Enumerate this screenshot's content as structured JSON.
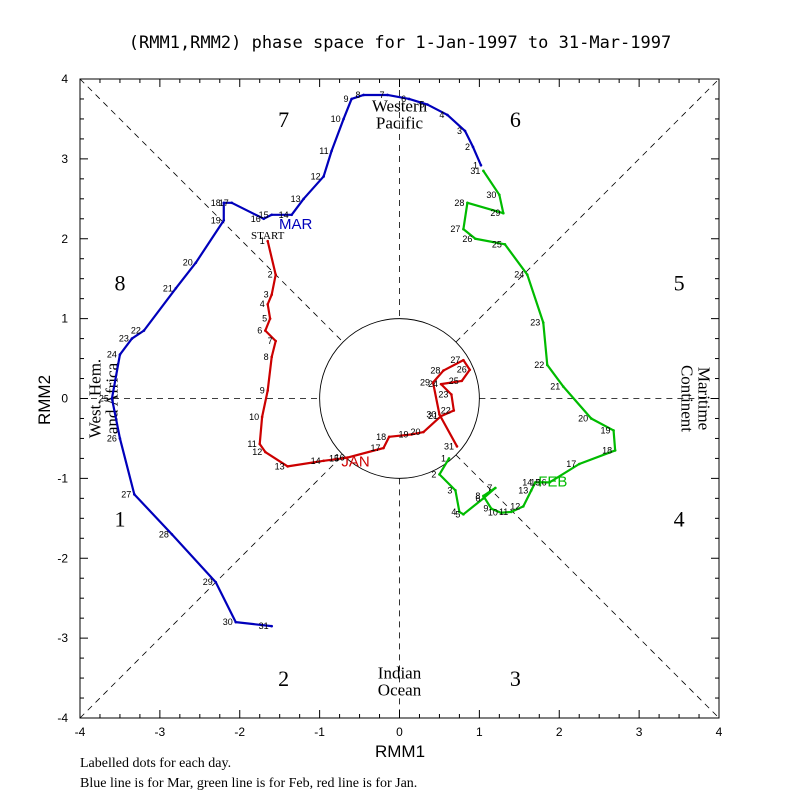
{
  "chart_data": {
    "type": "line",
    "title": "(RMM1,RMM2) phase space for  1-Jan-1997 to 31-Mar-1997",
    "xlabel": "RMM1",
    "ylabel": "RMM2",
    "xlim": [
      -4,
      4
    ],
    "ylim": [
      -4,
      4
    ],
    "x_ticks": [
      "-4",
      "-3",
      "-2",
      "-1",
      "0",
      "1",
      "2",
      "3",
      "4"
    ],
    "y_ticks": [
      "-4",
      "-3",
      "-2",
      "-1",
      "0",
      "1",
      "2",
      "3",
      "4"
    ],
    "phases": [
      {
        "label": "1",
        "x": -3.5,
        "y": -1.5
      },
      {
        "label": "2",
        "x": -1.45,
        "y": -3.5
      },
      {
        "label": "3",
        "x": 1.45,
        "y": -3.5
      },
      {
        "label": "4",
        "x": 3.5,
        "y": -1.5
      },
      {
        "label": "5",
        "x": 3.5,
        "y": 1.45
      },
      {
        "label": "6",
        "x": 1.45,
        "y": 3.5
      },
      {
        "label": "7",
        "x": -1.45,
        "y": 3.5
      },
      {
        "label": "8",
        "x": -3.5,
        "y": 1.45
      }
    ],
    "regions": [
      {
        "lines": [
          "Western",
          "Pacific"
        ],
        "x": 0,
        "y": 3.55,
        "rotate": 0
      },
      {
        "lines": [
          "Indian",
          "Ocean"
        ],
        "x": 0,
        "y": -3.55,
        "rotate": 0
      },
      {
        "lines": [
          "West. Hem.",
          "and Africa"
        ],
        "x": -3.7,
        "y": 0,
        "rotate": -90
      },
      {
        "lines": [
          "Maritime",
          "Continent"
        ],
        "x": 3.7,
        "y": 0,
        "rotate": 90
      }
    ],
    "series": [
      {
        "name": "Jan",
        "label": "JAN",
        "color": "#cc0000",
        "label_at": [
          -0.55,
          -0.85
        ],
        "start_label": "START",
        "points": [
          [
            -1.65,
            1.97
          ],
          [
            -1.55,
            1.55
          ],
          [
            -1.6,
            1.3
          ],
          [
            -1.65,
            1.18
          ],
          [
            -1.62,
            1.0
          ],
          [
            -1.68,
            0.85
          ],
          [
            -1.55,
            0.72
          ],
          [
            -1.6,
            0.52
          ],
          [
            -1.65,
            0.1
          ],
          [
            -1.72,
            -0.23
          ],
          [
            -1.75,
            -0.57
          ],
          [
            -1.68,
            -0.67
          ],
          [
            -1.4,
            -0.85
          ],
          [
            -0.95,
            -0.78
          ],
          [
            -0.72,
            -0.75
          ],
          [
            -0.65,
            -0.74
          ],
          [
            -0.2,
            -0.62
          ],
          [
            -0.13,
            -0.48
          ],
          [
            0.15,
            -0.45
          ],
          [
            0.3,
            -0.42
          ],
          [
            0.52,
            -0.22
          ],
          [
            0.68,
            -0.15
          ],
          [
            0.65,
            0.05
          ],
          [
            0.52,
            0.18
          ],
          [
            0.78,
            0.22
          ],
          [
            0.88,
            0.36
          ],
          [
            0.8,
            0.48
          ],
          [
            0.55,
            0.35
          ],
          [
            0.42,
            0.2
          ],
          [
            0.5,
            -0.2
          ],
          [
            0.72,
            -0.6
          ]
        ]
      },
      {
        "name": "Feb",
        "label": "FEB",
        "color": "#00bb00",
        "label_at": [
          1.92,
          -1.1
        ],
        "points": [
          [
            0.62,
            -0.75
          ],
          [
            0.5,
            -0.95
          ],
          [
            0.7,
            -1.15
          ],
          [
            0.75,
            -1.42
          ],
          [
            0.8,
            -1.45
          ],
          [
            1.05,
            -1.25
          ],
          [
            1.2,
            -1.12
          ],
          [
            1.05,
            -1.22
          ],
          [
            1.15,
            -1.38
          ],
          [
            1.27,
            -1.43
          ],
          [
            1.4,
            -1.42
          ],
          [
            1.55,
            -1.35
          ],
          [
            1.65,
            -1.15
          ],
          [
            1.7,
            -1.05
          ],
          [
            1.8,
            -1.05
          ],
          [
            1.88,
            -1.05
          ],
          [
            2.25,
            -0.82
          ],
          [
            2.7,
            -0.65
          ],
          [
            2.68,
            -0.4
          ],
          [
            2.4,
            -0.25
          ],
          [
            2.05,
            0.15
          ],
          [
            1.85,
            0.42
          ],
          [
            1.8,
            0.95
          ],
          [
            1.6,
            1.55
          ],
          [
            1.32,
            1.93
          ],
          [
            0.95,
            2.0
          ],
          [
            0.8,
            2.12
          ],
          [
            0.85,
            2.45
          ],
          [
            1.3,
            2.32
          ],
          [
            1.25,
            2.55
          ],
          [
            1.05,
            2.85
          ]
        ]
      },
      {
        "name": "Mar",
        "label": "MAR",
        "color": "#0000bb",
        "label_at": [
          -1.3,
          2.12
        ],
        "points": [
          [
            1.02,
            2.92
          ],
          [
            0.92,
            3.15
          ],
          [
            0.82,
            3.35
          ],
          [
            0.6,
            3.55
          ],
          [
            0.35,
            3.68
          ],
          [
            0.12,
            3.75
          ],
          [
            -0.15,
            3.8
          ],
          [
            -0.45,
            3.8
          ],
          [
            -0.6,
            3.75
          ],
          [
            -0.7,
            3.5
          ],
          [
            -0.85,
            3.1
          ],
          [
            -0.95,
            2.78
          ],
          [
            -1.2,
            2.5
          ],
          [
            -1.35,
            2.3
          ],
          [
            -1.6,
            2.3
          ],
          [
            -1.7,
            2.25
          ],
          [
            -2.1,
            2.45
          ],
          [
            -2.2,
            2.45
          ],
          [
            -2.2,
            2.23
          ],
          [
            -2.55,
            1.7
          ],
          [
            -2.8,
            1.38
          ],
          [
            -3.2,
            0.85
          ],
          [
            -3.35,
            0.75
          ],
          [
            -3.5,
            0.55
          ],
          [
            -3.6,
            0.0
          ],
          [
            -3.5,
            -0.5
          ],
          [
            -3.32,
            -1.2
          ],
          [
            -2.85,
            -1.7
          ],
          [
            -2.3,
            -2.3
          ],
          [
            -2.05,
            -2.8
          ],
          [
            -1.6,
            -2.85
          ]
        ]
      }
    ],
    "captions": [
      "Labelled dots for each day.",
      "Blue line is for Mar, green line is for Feb, red line is for Jan."
    ]
  }
}
